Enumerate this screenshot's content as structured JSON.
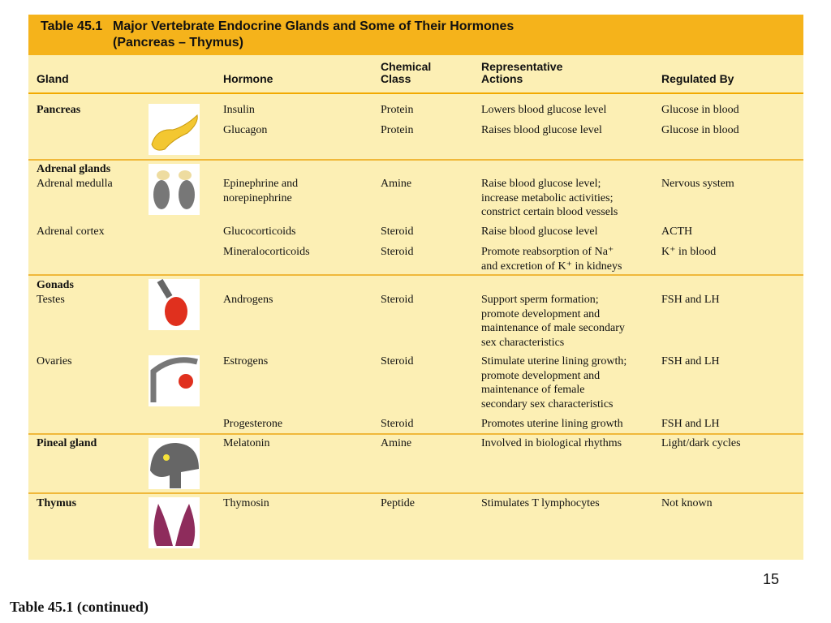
{
  "header": {
    "number": "Table 45.1",
    "title": "Major Vertebrate Endocrine Glands and Some of Their Hormones",
    "subtitle": "(Pancreas – Thymus)"
  },
  "table": {
    "columns": [
      "Gland",
      "Hormone",
      "Chemical\nClass",
      "Representative\nActions",
      "Regulated By"
    ],
    "rows": [
      {
        "section": "Pancreas",
        "hormone": "Insulin",
        "class": "Protein",
        "actions": "Lowers blood glucose level",
        "regulated": "Glucose in blood"
      },
      {
        "hormone": "Glucagon",
        "class": "Protein",
        "actions": "Raises blood glucose level",
        "regulated": "Glucose in blood"
      },
      {
        "section": "Adrenal glands",
        "gland": "Adrenal medulla",
        "hormone": "Epinephrine and\nnorepinephrine",
        "class": "Amine",
        "actions": "Raise blood glucose level;\nincrease metabolic activities;\nconstrict certain blood vessels",
        "regulated": "Nervous system"
      },
      {
        "gland": "Adrenal cortex",
        "hormone": "Glucocorticoids",
        "class": "Steroid",
        "actions": "Raise blood glucose level",
        "regulated": "ACTH"
      },
      {
        "hormone": "Mineralocorticoids",
        "class": "Steroid",
        "actions": "Promote reabsorption of Na⁺\nand excretion of K⁺ in kidneys",
        "regulated": "K⁺ in blood"
      },
      {
        "section": "Gonads",
        "gland": "Testes",
        "hormone": "Androgens",
        "class": "Steroid",
        "actions": "Support sperm formation;\npromote development and\nmaintenance of male secondary\nsex characteristics",
        "regulated": "FSH and LH"
      },
      {
        "gland": "Ovaries",
        "hormone": "Estrogens",
        "class": "Steroid",
        "actions": "Stimulate uterine lining growth;\npromote development and\nmaintenance of female\nsecondary sex characteristics",
        "regulated": "FSH and LH"
      },
      {
        "hormone": "Progesterone",
        "class": "Steroid",
        "actions": "Promotes uterine lining growth",
        "regulated": "FSH and LH"
      },
      {
        "section": "Pineal gland",
        "hormone": "Melatonin",
        "class": "Amine",
        "actions": "Involved in biological rhythms",
        "regulated": "Light/dark cycles"
      },
      {
        "section": "Thymus",
        "hormone": "Thymosin",
        "class": "Peptide",
        "actions": "Stimulates T lymphocytes",
        "regulated": "Not known"
      }
    ]
  },
  "page_number": "15",
  "caption": "Table 45.1 (continued)"
}
